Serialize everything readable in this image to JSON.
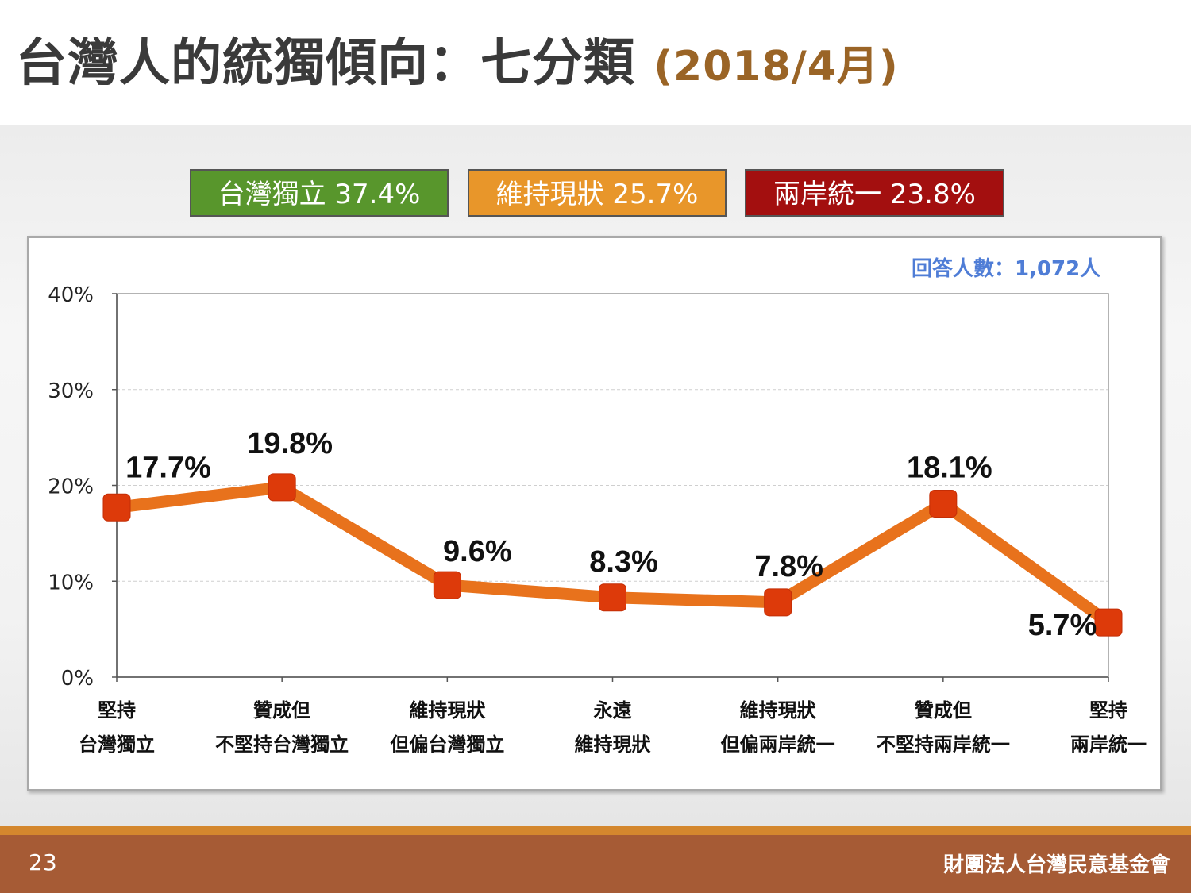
{
  "title": {
    "main": "台灣人的統獨傾向：七分類",
    "sub": "(2018/4月)"
  },
  "summary_badges": [
    {
      "label": "台灣獨立 37.4%",
      "color": "#58962c"
    },
    {
      "label": "維持現狀 25.7%",
      "color": "#e8962a"
    },
    {
      "label": "兩岸統一 23.8%",
      "color": "#a30f0f"
    }
  ],
  "respondents_note": "回答人數：1,072人",
  "chart_data": {
    "type": "line",
    "categories": [
      [
        "堅持",
        "台灣獨立"
      ],
      [
        "贊成但",
        "不堅持台灣獨立"
      ],
      [
        "維持現狀",
        "但偏台灣獨立"
      ],
      [
        "永遠",
        "維持現狀"
      ],
      [
        "維持現狀",
        "但偏兩岸統一"
      ],
      [
        "贊成但",
        "不堅持兩岸統一"
      ],
      [
        "堅持",
        "兩岸統一"
      ]
    ],
    "values": [
      17.7,
      19.8,
      9.6,
      8.3,
      7.8,
      18.1,
      5.7
    ],
    "data_labels": [
      "17.7%",
      "19.8%",
      "9.6%",
      "8.3%",
      "7.8%",
      "18.1%",
      "5.7%"
    ],
    "yticks": [
      "0%",
      "10%",
      "20%",
      "30%",
      "40%"
    ],
    "ytick_values": [
      0,
      10,
      20,
      30,
      40
    ],
    "ylim": [
      0,
      40
    ],
    "grid": true,
    "line_color": "#e8721c",
    "marker_color": "#dd3a0a"
  },
  "footer": {
    "page_number": "23",
    "organization": "財團法人台灣民意基金會"
  },
  "colors": {
    "title_sub": "#9a6426",
    "respondents": "#4f7dd6",
    "footer_bg": "#a65b35",
    "footer_stripe": "#d4872e"
  }
}
